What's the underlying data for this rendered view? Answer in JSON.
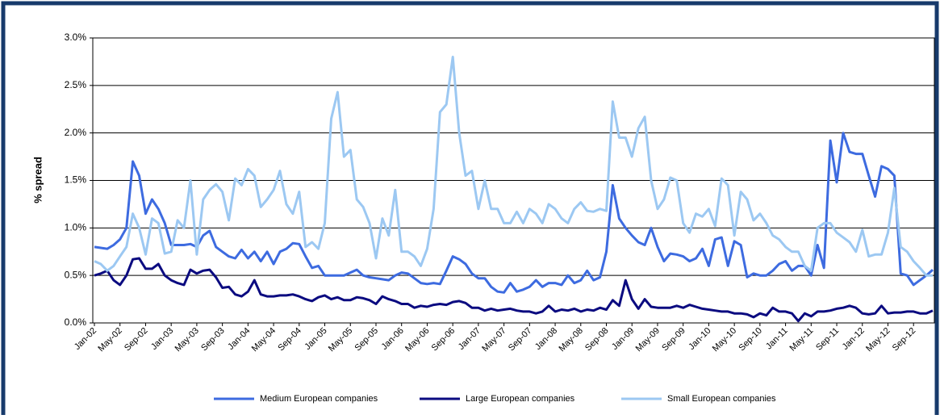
{
  "chart_data": {
    "type": "line",
    "y_label": "% spread",
    "categories": [
      "Jan-02",
      null,
      null,
      null,
      "May-02",
      null,
      null,
      null,
      "Sep-02",
      null,
      null,
      null,
      "Jan-03",
      null,
      null,
      null,
      "May-03",
      null,
      null,
      null,
      "Sep-03",
      null,
      null,
      null,
      "Jan-04",
      null,
      null,
      null,
      "May-04",
      null,
      null,
      null,
      "Sep-04",
      null,
      null,
      null,
      "Jan-05",
      null,
      null,
      null,
      "May-05",
      null,
      null,
      null,
      "Sep-05",
      null,
      null,
      null,
      "Jan-06",
      null,
      null,
      null,
      "May-06",
      null,
      null,
      null,
      "Sep-06",
      null,
      null,
      null,
      "Jan-07",
      null,
      null,
      null,
      "May-07",
      null,
      null,
      null,
      "Sep-07",
      null,
      null,
      null,
      "Jan-08",
      null,
      null,
      null,
      "May-08",
      null,
      null,
      null,
      "Sep-08",
      null,
      null,
      null,
      "Jan-09",
      null,
      null,
      null,
      "May-09",
      null,
      null,
      null,
      "Sep-09",
      null,
      null,
      null,
      "Jan-10",
      null,
      null,
      null,
      "May-10",
      null,
      null,
      null,
      "Sep-10",
      null,
      null,
      null,
      "Jan-11",
      null,
      null,
      null,
      "May-11",
      null,
      null,
      null,
      "Sep-11",
      null,
      null,
      null,
      "Jan-12",
      null,
      null,
      null,
      "May-12",
      null,
      null,
      null,
      "Sep-12",
      null,
      null,
      null
    ],
    "series": [
      {
        "name": "Medium European companies",
        "color": "#3d6be0",
        "values": [
          0.8,
          0.79,
          0.78,
          0.82,
          0.88,
          1.0,
          1.7,
          1.55,
          1.15,
          1.3,
          1.2,
          1.05,
          0.82,
          0.82,
          0.82,
          0.83,
          0.8,
          0.92,
          0.97,
          0.8,
          0.75,
          0.7,
          0.68,
          0.77,
          0.68,
          0.75,
          0.65,
          0.75,
          0.62,
          0.75,
          0.78,
          0.84,
          0.83,
          0.7,
          0.58,
          0.6,
          0.5,
          0.5,
          0.5,
          0.5,
          0.53,
          0.56,
          0.5,
          0.48,
          0.47,
          0.46,
          0.45,
          0.5,
          0.53,
          0.52,
          0.47,
          0.42,
          0.41,
          0.42,
          0.41,
          0.55,
          0.7,
          0.67,
          0.62,
          0.52,
          0.47,
          0.47,
          0.38,
          0.33,
          0.32,
          0.42,
          0.33,
          0.35,
          0.38,
          0.45,
          0.38,
          0.42,
          0.42,
          0.4,
          0.5,
          0.42,
          0.45,
          0.55,
          0.45,
          0.48,
          0.75,
          1.45,
          1.1,
          1.0,
          0.92,
          0.85,
          0.82,
          1.0,
          0.8,
          0.65,
          0.73,
          0.72,
          0.7,
          0.65,
          0.68,
          0.78,
          0.6,
          0.88,
          0.9,
          0.6,
          0.86,
          0.82,
          0.48,
          0.52,
          0.5,
          0.5,
          0.55,
          0.62,
          0.65,
          0.55,
          0.6,
          0.6,
          0.5,
          0.82,
          0.58,
          1.92,
          1.48,
          2.0,
          1.8,
          1.78,
          1.78,
          1.55,
          1.33,
          1.65,
          1.62,
          1.55,
          0.52,
          0.5,
          0.4,
          0.45,
          0.5,
          0.56
        ]
      },
      {
        "name": "Large European companies",
        "color": "#0b0b80",
        "values": [
          0.5,
          0.52,
          0.55,
          0.45,
          0.4,
          0.5,
          0.67,
          0.68,
          0.57,
          0.57,
          0.62,
          0.5,
          0.45,
          0.42,
          0.4,
          0.56,
          0.52,
          0.55,
          0.56,
          0.48,
          0.37,
          0.38,
          0.3,
          0.28,
          0.33,
          0.45,
          0.3,
          0.28,
          0.28,
          0.29,
          0.29,
          0.3,
          0.28,
          0.25,
          0.23,
          0.27,
          0.29,
          0.25,
          0.27,
          0.24,
          0.24,
          0.27,
          0.26,
          0.24,
          0.2,
          0.28,
          0.25,
          0.23,
          0.2,
          0.2,
          0.16,
          0.18,
          0.17,
          0.19,
          0.2,
          0.19,
          0.22,
          0.23,
          0.21,
          0.16,
          0.16,
          0.13,
          0.15,
          0.13,
          0.14,
          0.15,
          0.13,
          0.12,
          0.12,
          0.1,
          0.12,
          0.18,
          0.12,
          0.14,
          0.13,
          0.15,
          0.12,
          0.14,
          0.13,
          0.16,
          0.14,
          0.24,
          0.18,
          0.45,
          0.25,
          0.15,
          0.25,
          0.17,
          0.16,
          0.16,
          0.16,
          0.18,
          0.16,
          0.19,
          0.17,
          0.15,
          0.14,
          0.13,
          0.12,
          0.12,
          0.1,
          0.1,
          0.09,
          0.06,
          0.1,
          0.08,
          0.16,
          0.12,
          0.12,
          0.1,
          0.02,
          0.1,
          0.07,
          0.12,
          0.12,
          0.13,
          0.15,
          0.16,
          0.18,
          0.16,
          0.1,
          0.09,
          0.1,
          0.18,
          0.1,
          0.11,
          0.11,
          0.12,
          0.12,
          0.1,
          0.1,
          0.13
        ]
      },
      {
        "name": "Small European companies",
        "color": "#9cc8f2",
        "values": [
          0.65,
          0.62,
          0.55,
          0.6,
          0.7,
          0.8,
          1.15,
          1.0,
          0.72,
          1.1,
          1.05,
          0.73,
          0.75,
          1.08,
          1.0,
          1.5,
          0.72,
          1.3,
          1.4,
          1.46,
          1.38,
          1.08,
          1.52,
          1.45,
          1.62,
          1.55,
          1.22,
          1.3,
          1.4,
          1.6,
          1.25,
          1.15,
          1.38,
          0.8,
          0.85,
          0.78,
          1.05,
          2.15,
          2.43,
          1.75,
          1.82,
          1.3,
          1.22,
          1.05,
          0.68,
          1.1,
          0.92,
          1.4,
          0.75,
          0.75,
          0.7,
          0.6,
          0.78,
          1.2,
          2.22,
          2.3,
          2.8,
          2.0,
          1.55,
          1.6,
          1.2,
          1.5,
          1.2,
          1.2,
          1.05,
          1.05,
          1.17,
          1.05,
          1.2,
          1.15,
          1.05,
          1.25,
          1.2,
          1.1,
          1.05,
          1.2,
          1.27,
          1.18,
          1.17,
          1.2,
          1.18,
          2.33,
          1.95,
          1.95,
          1.75,
          2.05,
          2.17,
          1.5,
          1.2,
          1.3,
          1.53,
          1.5,
          1.05,
          0.95,
          1.15,
          1.12,
          1.2,
          1.02,
          1.52,
          1.45,
          0.92,
          1.38,
          1.3,
          1.08,
          1.15,
          1.05,
          0.92,
          0.88,
          0.8,
          0.75,
          0.75,
          0.6,
          0.55,
          1.0,
          1.05,
          1.05,
          0.95,
          0.9,
          0.85,
          0.75,
          0.98,
          0.7,
          0.72,
          0.72,
          0.95,
          1.42,
          0.8,
          0.75,
          0.65,
          0.58,
          0.5,
          0.5
        ]
      }
    ],
    "ylim": [
      0,
      3
    ],
    "yticks": [
      {
        "value": 0,
        "label": "0.0%"
      },
      {
        "value": 0.5,
        "label": "0.5%"
      },
      {
        "value": 1,
        "label": "1.0%"
      },
      {
        "value": 1.5,
        "label": "1.5%"
      },
      {
        "value": 2,
        "label": "2.0%"
      },
      {
        "value": 2.5,
        "label": "2.5%"
      },
      {
        "value": 3,
        "label": "3.0%"
      }
    ],
    "grid": true,
    "legend": "bottom"
  }
}
